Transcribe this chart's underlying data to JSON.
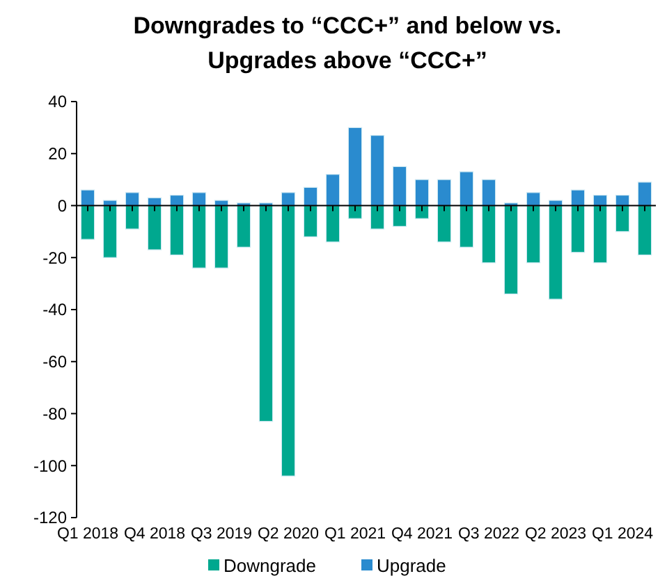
{
  "chart_data": {
    "type": "bar",
    "title": "Downgrades to “CCC+” and below vs. Upgrades above “CCC+”",
    "categories": [
      "Q1 2018",
      null,
      null,
      "Q4 2018",
      null,
      null,
      "Q3 2019",
      null,
      null,
      "Q2 2020",
      null,
      null,
      "Q1 2021",
      null,
      null,
      "Q4 2021",
      null,
      null,
      "Q3 2022",
      null,
      null,
      "Q2 2023",
      null,
      null,
      "Q1 2024",
      null
    ],
    "series": [
      {
        "name": "Downgrade",
        "color": "#00a88f",
        "values": [
          -13,
          -20,
          -9,
          -17,
          -19,
          -24,
          -24,
          -16,
          -83,
          -104,
          -12,
          -14,
          -5,
          -9,
          -8,
          -5,
          -14,
          -16,
          -22,
          -34,
          -22,
          -36,
          -18,
          -22,
          -10,
          -19
        ]
      },
      {
        "name": "Upgrade",
        "color": "#2a8bcf",
        "values": [
          6,
          2,
          5,
          3,
          4,
          5,
          2,
          1,
          1,
          5,
          7,
          12,
          30,
          27,
          15,
          10,
          10,
          13,
          10,
          1,
          5,
          2,
          6,
          4,
          4,
          9
        ]
      }
    ],
    "stacked": true,
    "ylim": [
      -120,
      40
    ],
    "yticks": [
      -120,
      -100,
      -80,
      -60,
      -40,
      -20,
      0,
      20,
      40
    ],
    "legend": "bottom"
  }
}
